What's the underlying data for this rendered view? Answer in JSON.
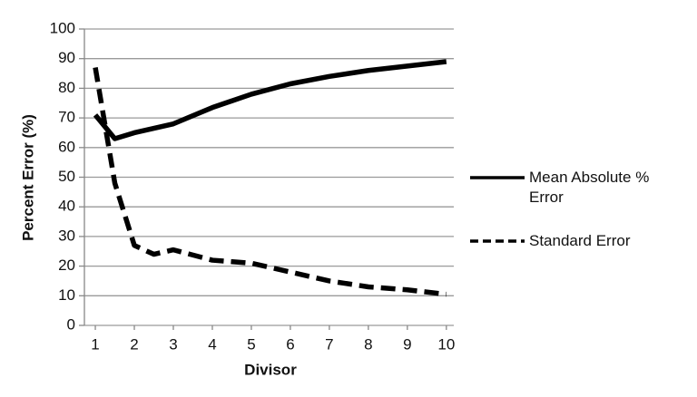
{
  "chart_data": {
    "type": "line",
    "x_label": "Divisor",
    "y_label": "Percent Error (%)",
    "x": [
      1,
      1.5,
      2,
      2.5,
      3,
      4,
      5,
      6,
      7,
      8,
      9,
      10
    ],
    "series": [
      {
        "name": "Mean Absolute % Error",
        "color": "#000000",
        "dash": false,
        "values": [
          71,
          63,
          65,
          66.5,
          68,
          73.5,
          78,
          81.5,
          84,
          86,
          87.5,
          89
        ]
      },
      {
        "name": "Standard Error",
        "color": "#000000",
        "dash": true,
        "values": [
          87,
          48,
          27,
          24,
          25.5,
          22,
          21,
          18,
          15,
          13,
          12,
          10.5
        ]
      }
    ],
    "xlim": [
      0.72,
      10.19
    ],
    "xticks": [
      1,
      2,
      3,
      4,
      5,
      6,
      7,
      8,
      9,
      10
    ],
    "ylim": [
      0,
      100
    ],
    "yticks": [
      0,
      10,
      20,
      30,
      40,
      50,
      60,
      70,
      80,
      90,
      100
    ],
    "grid": true,
    "legend": "right"
  }
}
